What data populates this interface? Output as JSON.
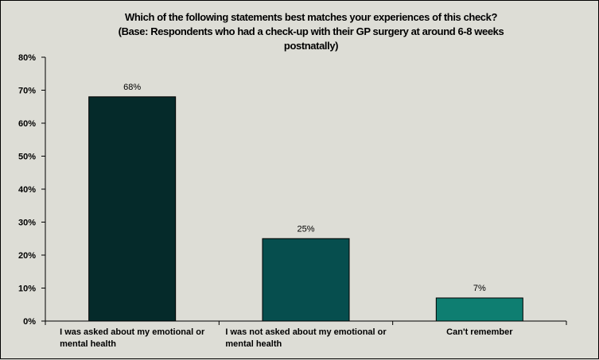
{
  "chart_data": {
    "type": "bar",
    "title_lines": [
      "Which of the following statements best matches your experiences of this check?",
      "(Base: Respondents who had a check-up with their GP surgery at around 6-8 weeks",
      "postnatally)"
    ],
    "categories": [
      [
        "I was asked about my emotional or",
        "mental health"
      ],
      [
        "I was not asked about my emotional or",
        "mental health"
      ],
      [
        "Can't remember"
      ]
    ],
    "values": [
      68,
      25,
      7
    ],
    "data_labels": [
      "68%",
      "25%",
      "7%"
    ],
    "bar_colors": [
      "#052a2a",
      "#064e4e",
      "#0e7e71"
    ],
    "ylim": [
      0,
      80
    ],
    "yticks": [
      "0%",
      "10%",
      "20%",
      "30%",
      "40%",
      "50%",
      "60%",
      "70%",
      "80%"
    ],
    "xlabel": "",
    "ylabel": "",
    "grid": false,
    "legend": "none"
  }
}
